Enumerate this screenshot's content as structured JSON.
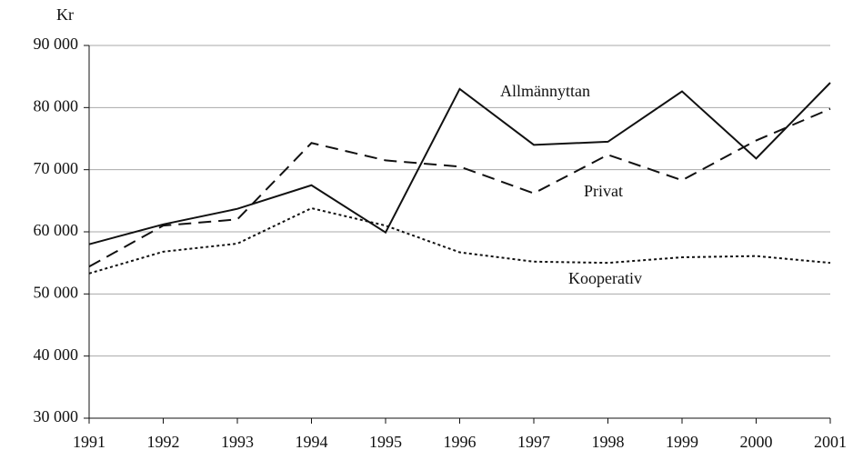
{
  "chart_data": {
    "type": "line",
    "unit": "Kr",
    "x": [
      1991,
      1992,
      1993,
      1994,
      1995,
      1996,
      1997,
      1998,
      1999,
      2000,
      2001
    ],
    "xlim": [
      1991,
      2001
    ],
    "xticks": [
      1991,
      1992,
      1993,
      1994,
      1995,
      1996,
      1997,
      1998,
      1999,
      2000,
      2001
    ],
    "ylim": [
      30000,
      90000
    ],
    "yticks": [
      {
        "value": 30000,
        "label": "30 000"
      },
      {
        "value": 40000,
        "label": "40 000"
      },
      {
        "value": 50000,
        "label": "50 000"
      },
      {
        "value": 60000,
        "label": "60 000"
      },
      {
        "value": 70000,
        "label": "70 000"
      },
      {
        "value": 80000,
        "label": "80 000"
      },
      {
        "value": 90000,
        "label": "90 000"
      }
    ],
    "grid": true,
    "series": [
      {
        "name": "Allmännyttan",
        "color": "#111111",
        "dash": "solid",
        "values": [
          58000,
          61200,
          63700,
          67500,
          59900,
          83000,
          74000,
          74500,
          82600,
          71800,
          84000
        ]
      },
      {
        "name": "Privat",
        "color": "#111111",
        "dash": "dashed",
        "values": [
          54400,
          61000,
          62000,
          74300,
          71500,
          70500,
          66200,
          72400,
          68300,
          74700,
          79800
        ]
      },
      {
        "name": "Kooperativ",
        "color": "#111111",
        "dash": "dotted",
        "values": [
          53300,
          56800,
          58100,
          63800,
          61000,
          56700,
          55200,
          55000,
          55900,
          56100,
          55000
        ]
      }
    ]
  }
}
